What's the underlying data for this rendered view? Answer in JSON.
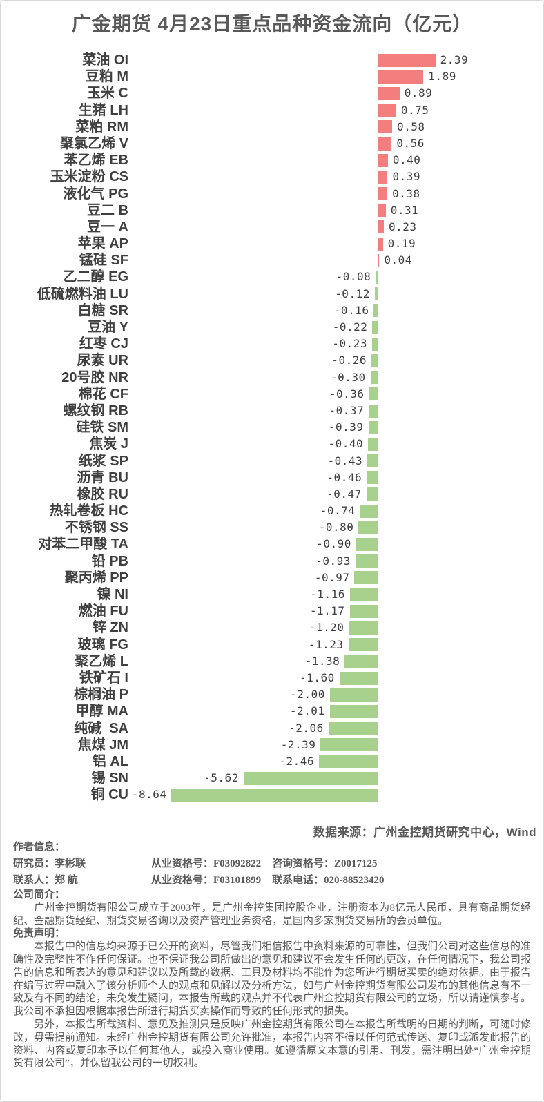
{
  "title": "广金期货 4月23日重点品种资金流向（亿元）",
  "source_note": "数据来源：广州金控期货研究中心，Wind",
  "chart_data": {
    "type": "bar",
    "orientation": "horizontal",
    "title": "广金期货 4月23日重点品种资金流向（亿元）",
    "unit": "亿元",
    "grid": false,
    "value_labels": true,
    "xlim": [
      -8.64,
      2.39
    ],
    "positive_color": "#f47d7d",
    "negative_color": "#a9d18e",
    "axis_color": "#d9d9d9",
    "categories": [
      "菜油 OI",
      "豆粕 M",
      "玉米 C",
      "生猪 LH",
      "菜粕 RM",
      "聚氯乙烯 V",
      "苯乙烯 EB",
      "玉米淀粉 CS",
      "液化气 PG",
      "豆二 B",
      "豆一 A",
      "苹果 AP",
      "锰硅 SF",
      "乙二醇 EG",
      "低硫燃料油 LU",
      "白糖 SR",
      "豆油 Y",
      "红枣 CJ",
      "尿素 UR",
      "20号胶 NR",
      "棉花 CF",
      "螺纹钢 RB",
      "硅铁 SM",
      "焦炭 J",
      "纸浆 SP",
      "沥青 BU",
      "橡胶 RU",
      "热轧卷板 HC",
      "不锈钢 SS",
      "对苯二甲酸 TA",
      "铅 PB",
      "聚丙烯 PP",
      "镍 NI",
      "燃油 FU",
      "锌 ZN",
      "玻璃 FG",
      "聚乙烯 L",
      "铁矿石 I",
      "棕榈油 P",
      "甲醇 MA",
      "纯碱  SA",
      "焦煤 JM",
      "铝 AL",
      "锡 SN",
      "铜 CU"
    ],
    "values": [
      2.39,
      1.89,
      0.89,
      0.75,
      0.58,
      0.56,
      0.4,
      0.39,
      0.38,
      0.31,
      0.23,
      0.19,
      0.04,
      -0.08,
      -0.12,
      -0.16,
      -0.22,
      -0.23,
      -0.26,
      -0.3,
      -0.36,
      -0.37,
      -0.39,
      -0.4,
      -0.43,
      -0.46,
      -0.47,
      -0.74,
      -0.8,
      -0.9,
      -0.93,
      -0.97,
      -1.16,
      -1.17,
      -1.2,
      -1.23,
      -1.38,
      -1.6,
      -2.0,
      -2.01,
      -2.06,
      -2.39,
      -2.46,
      -5.62,
      -8.64
    ]
  },
  "footer": {
    "author_heading": "作者信息：",
    "author_rows": [
      [
        "研究员：李彬联",
        "从业资格号：F03092822",
        "咨询资格号：Z0017125"
      ],
      [
        "联系人：郑 航",
        "从业资格号：F03101899",
        "联系电话：020-88523420"
      ]
    ],
    "company_heading": "公司简介：",
    "company_intro": "　　广州金控期货有限公司成立于2003年，是广州金控集团控股企业，注册资本为8亿元人民币，具有商品期货经纪、金融期货经纪、期货交易咨询以及资产管理业务资格，是国内多家期货交易所的会员单位。",
    "disclaimer_heading": "免责声明：",
    "disclaimer_paragraphs": [
      "　　本报告中的信息均来源于已公开的资料，尽管我们相信报告中资料来源的可靠性，但我们公司对这些信息的准确性及完整性不作任何保证。也不保证我公司所做出的意见和建议不会发生任何的更改，在任何情况下，我公司报告的信息和所表达的意见和建议以及所载的数据、工具及材料均不能作为您所进行期货买卖的绝对依据。由于报告在编写过程中融入了该分析师个人的观点和见解以及分析方法，如与广州金控期货有限公司发布的其他信息有不一致及有不同的结论，未免发生疑问，本报告所载的观点并不代表广州金控期货有限公司的立场，所以请谨慎参考。我公司不承担因根据本报告所进行期货买卖操作而导致的任何形式的损失。",
      "　　另外，本报告所载资料、意见及推测只是反映广州金控期货有限公司在本报告所载明的日期的判断，可随时修改，毋需提前通知。未经广州金控期货有限公司允许批准，本报告内容不得以任何范式传送、复印或派发此报告的资料、内容或复印本予以任何其他人，或投入商业使用。如遵循原文本意的引用、刊发，需注明出处“广州金控期货有限公司”，并保留我公司的一切权利。"
    ]
  }
}
